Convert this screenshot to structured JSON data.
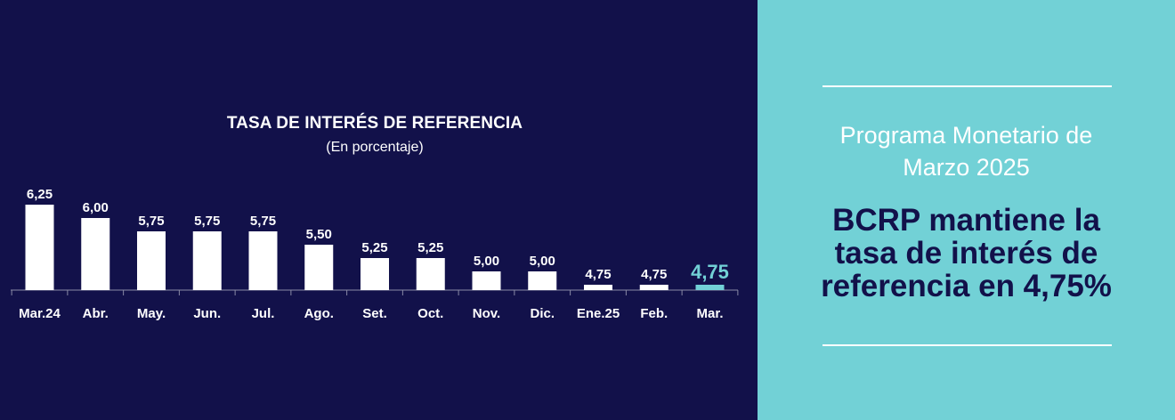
{
  "colors": {
    "background_dark": "#12114a",
    "background_accent": "#72d1d6",
    "bar": "#ffffff",
    "bar_highlight": "#72d1d6",
    "text_light": "#ffffff",
    "text_dark": "#12114a"
  },
  "chart_data": {
    "type": "bar",
    "title": "TASA DE INTERÉS DE REFERENCIA",
    "subtitle": "(En porcentaje)",
    "categories": [
      "Mar.24",
      "Abr.",
      "May.",
      "Jun.",
      "Jul.",
      "Ago.",
      "Set.",
      "Oct.",
      "Nov.",
      "Dic.",
      "Ene.25",
      "Feb.",
      "Mar."
    ],
    "values": [
      6.25,
      6.0,
      5.75,
      5.75,
      5.75,
      5.5,
      5.25,
      5.25,
      5.0,
      5.0,
      4.75,
      4.75,
      4.75
    ],
    "value_labels": [
      "6,25",
      "6,00",
      "5,75",
      "5,75",
      "5,75",
      "5,50",
      "5,25",
      "5,25",
      "5,00",
      "5,00",
      "4,75",
      "4,75",
      "4,75"
    ],
    "highlight_index": 12,
    "xlabel": "",
    "ylabel": "",
    "grid": false
  },
  "panel": {
    "program_title_lines": [
      "Programa Monetario de",
      "Marzo 2025"
    ],
    "headline_lines": [
      "BCRP mantiene la",
      "tasa de interés de",
      "referencia en 4,75%"
    ]
  }
}
